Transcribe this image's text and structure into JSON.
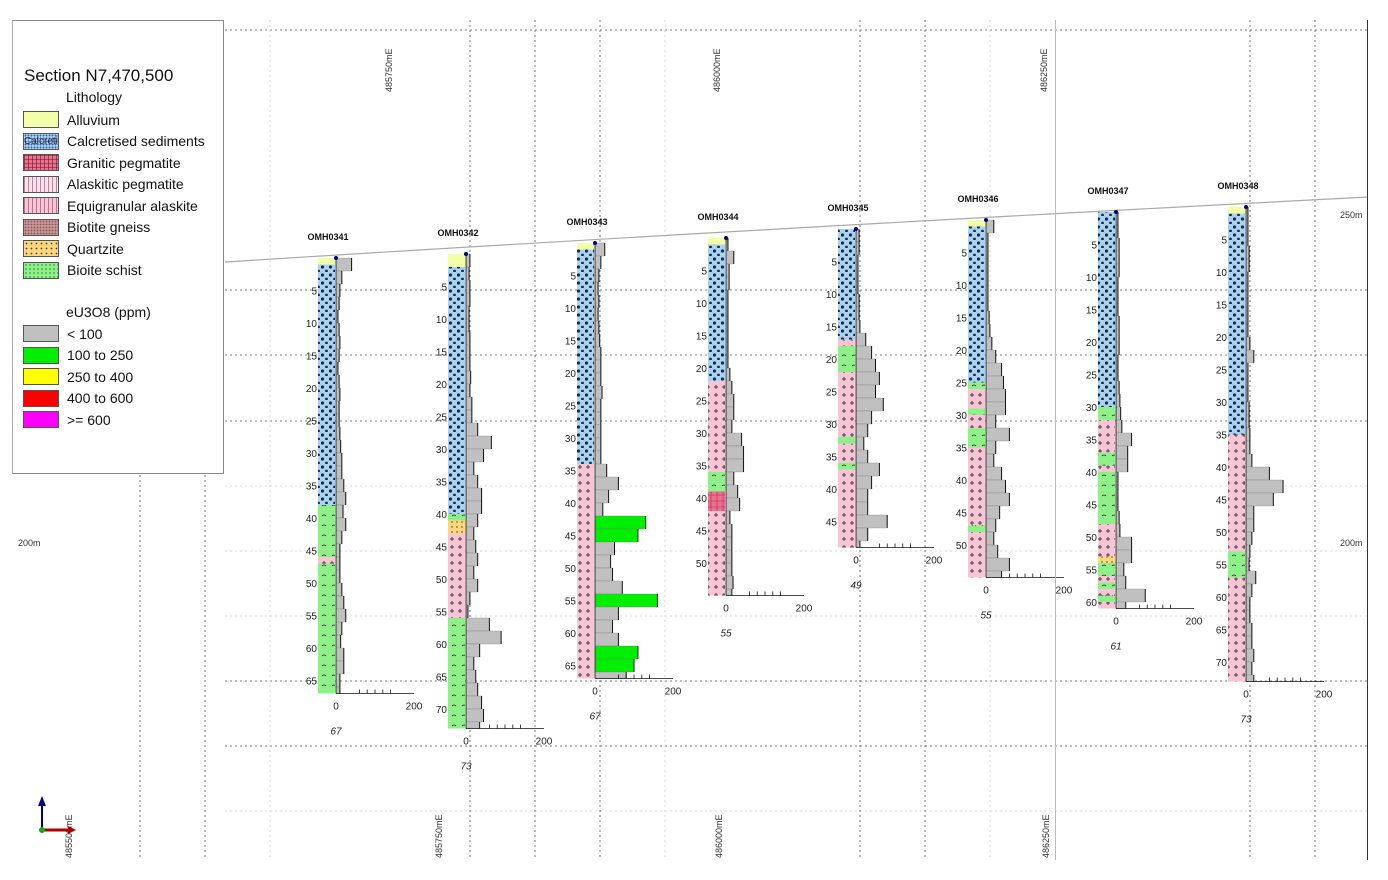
{
  "legend": {
    "title": "Section N7,470,500",
    "lithology_heading": "Lithology",
    "lithology": [
      {
        "code": "A",
        "label": "Alluvium",
        "swatch_text": "",
        "color": "#f3ffa8"
      },
      {
        "code": "C",
        "label": "Calcretised sediments",
        "swatch_text": "Calcreti",
        "color": "#a9d3f0"
      },
      {
        "code": "G",
        "label": "Granitic pegmatite",
        "swatch_text": "",
        "color": "#ee6f8e"
      },
      {
        "code": "K",
        "label": "Alaskitic pegmatite",
        "swatch_text": "",
        "color": "#fbe3ec"
      },
      {
        "code": "E",
        "label": "Equigranular alaskite",
        "swatch_text": "",
        "color": "#f7c5d6"
      },
      {
        "code": "B",
        "label": "Biotite gneiss",
        "swatch_text": "",
        "color": "#c89494"
      },
      {
        "code": "Q",
        "label": "Quartzite",
        "swatch_text": "",
        "color": "#ffd77a"
      },
      {
        "code": "S",
        "label": "Bioite schist",
        "swatch_text": "",
        "color": "#8ff08a"
      }
    ],
    "grade_heading": "eU3O8 (ppm)",
    "grades": [
      {
        "label": " < 100",
        "min": 0,
        "max": 100,
        "color": "#c0c0c0"
      },
      {
        "label": "100 to 250",
        "min": 100,
        "max": 250,
        "color": "#00ee00"
      },
      {
        "label": "250 to 400",
        "min": 250,
        "max": 400,
        "color": "#ffff00"
      },
      {
        "label": "400 to 600",
        "min": 400,
        "max": 600,
        "color": "#ff0000"
      },
      {
        "label": " >= 600",
        "min": 600,
        "max": 100000,
        "color": "#ff00ff"
      }
    ]
  },
  "axes": {
    "top_eastings": [
      "485750mE",
      "486000mE",
      "486250mE"
    ],
    "bottom_eastings": [
      "485500mE",
      "485750mE",
      "486000mE",
      "486250mE"
    ],
    "elevation_right": [
      "250m",
      "200m"
    ],
    "elevation_left": [
      "200m"
    ],
    "histogram_scale": {
      "min_label": "0",
      "max_label": "200",
      "max": 200
    },
    "grade_interval_m": 2,
    "depth_tick_step_m": 5
  },
  "holes": [
    {
      "name": "OMH0341",
      "depth": 67,
      "depth_label": "67",
      "lithology": [
        [
          0,
          1,
          "A"
        ],
        [
          1,
          38,
          "C"
        ],
        [
          38,
          46,
          "S"
        ],
        [
          46,
          47,
          "E"
        ],
        [
          47,
          67,
          "S"
        ]
      ],
      "grades": [
        40,
        15,
        10,
        8,
        5,
        8,
        10,
        8,
        5,
        8,
        10,
        8,
        8,
        10,
        12,
        15,
        15,
        20,
        25,
        18,
        25,
        15,
        10,
        10,
        10,
        15,
        20,
        25,
        15,
        12,
        20,
        20,
        10,
        10
      ]
    },
    {
      "name": "OMH0342",
      "depth": 73,
      "depth_label": "73",
      "lithology": [
        [
          0,
          2,
          "A"
        ],
        [
          2,
          40,
          "C"
        ],
        [
          40,
          41,
          "S"
        ],
        [
          41,
          43,
          "Q"
        ],
        [
          43,
          56,
          "E"
        ],
        [
          56,
          73,
          "S"
        ]
      ],
      "grades": [
        10,
        8,
        10,
        10,
        8,
        8,
        10,
        10,
        10,
        12,
        10,
        15,
        15,
        30,
        65,
        45,
        20,
        30,
        40,
        40,
        30,
        20,
        25,
        30,
        20,
        30,
        10,
        5,
        60,
        90,
        35,
        20,
        25,
        30,
        40,
        45,
        35
      ]
    },
    {
      "name": "OMH0343",
      "depth": 67,
      "depth_label": "67",
      "lithology": [
        [
          0,
          1,
          "A"
        ],
        [
          1,
          34,
          "C"
        ],
        [
          34,
          67,
          "E"
        ]
      ],
      "grades": [
        25,
        15,
        10,
        8,
        10,
        8,
        10,
        12,
        15,
        15,
        15,
        18,
        15,
        15,
        15,
        15,
        15,
        30,
        60,
        35,
        20,
        130,
        110,
        50,
        40,
        45,
        70,
        160,
        60,
        45,
        60,
        110,
        100,
        80
      ]
    },
    {
      "name": "OMH0344",
      "depth": 55,
      "depth_label": "55",
      "lithology": [
        [
          0,
          1,
          "A"
        ],
        [
          1,
          22,
          "C"
        ],
        [
          22,
          36,
          "E"
        ],
        [
          36,
          39,
          "S"
        ],
        [
          39,
          42,
          "G"
        ],
        [
          42,
          55,
          "E"
        ]
      ],
      "grades": [
        5,
        20,
        8,
        8,
        5,
        5,
        5,
        5,
        5,
        5,
        10,
        15,
        20,
        20,
        15,
        40,
        45,
        45,
        20,
        30,
        35,
        10,
        15,
        15,
        15,
        15,
        18,
        15
      ]
    },
    {
      "name": "OMH0345",
      "depth": 49,
      "depth_label": "49",
      "lithology": [
        [
          0,
          17,
          "C"
        ],
        [
          17,
          18,
          "E"
        ],
        [
          18,
          22,
          "S"
        ],
        [
          22,
          32,
          "E"
        ],
        [
          32,
          33,
          "S"
        ],
        [
          33,
          36,
          "E"
        ],
        [
          36,
          37,
          "S"
        ],
        [
          37,
          49,
          "E"
        ]
      ],
      "grades": [
        8,
        8,
        5,
        5,
        5,
        8,
        8,
        10,
        25,
        40,
        50,
        60,
        50,
        70,
        40,
        30,
        20,
        30,
        60,
        40,
        30,
        30,
        80,
        30,
        10
      ]
    },
    {
      "name": "OMH0346",
      "depth": 55,
      "depth_label": "55",
      "lithology": [
        [
          0,
          1,
          "A"
        ],
        [
          1,
          25,
          "C"
        ],
        [
          25,
          26,
          "S"
        ],
        [
          26,
          29,
          "E"
        ],
        [
          29,
          30,
          "S"
        ],
        [
          30,
          32,
          "E"
        ],
        [
          32,
          35,
          "S"
        ],
        [
          35,
          47,
          "E"
        ],
        [
          47,
          48,
          "S"
        ],
        [
          48,
          55,
          "E"
        ]
      ],
      "grades": [
        20,
        5,
        5,
        5,
        5,
        5,
        5,
        8,
        10,
        15,
        25,
        40,
        45,
        50,
        50,
        25,
        60,
        25,
        20,
        40,
        50,
        60,
        35,
        25,
        20,
        30,
        60,
        40
      ]
    },
    {
      "name": "OMH0347",
      "depth": 61,
      "depth_label": "61",
      "lithology": [
        [
          0,
          30,
          "C"
        ],
        [
          30,
          32,
          "S"
        ],
        [
          32,
          37,
          "E"
        ],
        [
          37,
          39,
          "S"
        ],
        [
          39,
          40,
          "E"
        ],
        [
          40,
          48,
          "S"
        ],
        [
          48,
          53,
          "E"
        ],
        [
          53,
          54,
          "Q"
        ],
        [
          54,
          56,
          "S"
        ],
        [
          56,
          57,
          "E"
        ],
        [
          57,
          58,
          "S"
        ],
        [
          58,
          59,
          "E"
        ],
        [
          59,
          60,
          "S"
        ],
        [
          60,
          61,
          "E"
        ]
      ],
      "grades": [
        5,
        5,
        8,
        8,
        8,
        5,
        5,
        5,
        8,
        8,
        8,
        5,
        5,
        8,
        10,
        12,
        15,
        40,
        30,
        30,
        5,
        5,
        5,
        8,
        10,
        40,
        40,
        20,
        25,
        75,
        25
      ]
    },
    {
      "name": "OMH0348",
      "depth": 73,
      "depth_label": "73",
      "lithology": [
        [
          0,
          1,
          "A"
        ],
        [
          1,
          35,
          "C"
        ],
        [
          35,
          53,
          "E"
        ],
        [
          53,
          57,
          "S"
        ],
        [
          57,
          73,
          "E"
        ]
      ],
      "grades": [
        5,
        5,
        5,
        8,
        8,
        5,
        5,
        5,
        5,
        5,
        10,
        20,
        5,
        5,
        5,
        8,
        8,
        10,
        10,
        15,
        60,
        95,
        70,
        20,
        20,
        15,
        10,
        8,
        25,
        15,
        10,
        10,
        15,
        15,
        20,
        15,
        20
      ]
    }
  ]
}
